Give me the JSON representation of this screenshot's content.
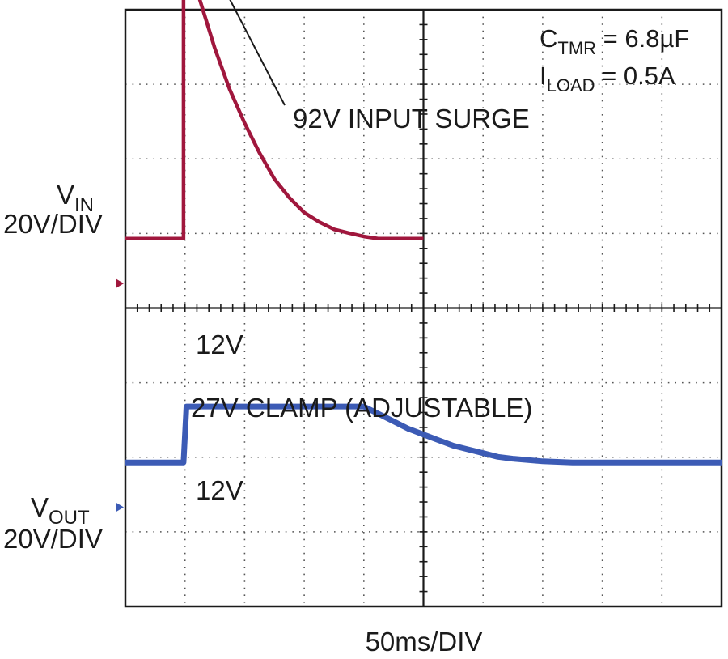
{
  "chart_data": {
    "type": "line",
    "title": "",
    "xlabel": "50ms/DIV",
    "grid": true,
    "divisions": {
      "x": 10,
      "y": 8
    },
    "annotations": {
      "ctmr": {
        "base": "C",
        "sub": "TMR",
        "rest": " = 6.8µF"
      },
      "iload": {
        "base": "I",
        "sub": "LOAD",
        "rest": " = 0.5A"
      },
      "surge": "92V INPUT SURGE",
      "clamp": "27V CLAMP (ADJUSTABLE)",
      "vin_level": "12V",
      "vout_level": "12V"
    },
    "series": [
      {
        "key": "vin",
        "label": {
          "base": "V",
          "sub": "IN",
          "scale": "20V/DIV"
        },
        "color": "#a0173d",
        "offset_div": 4.33,
        "scale_v_per_div": 20,
        "points": [
          [
            0,
            12
          ],
          [
            1.95,
            12
          ],
          [
            1.95,
            92
          ],
          [
            2.5,
            76
          ],
          [
            3,
            63
          ],
          [
            3.5,
            52
          ],
          [
            4,
            43
          ],
          [
            4.5,
            35
          ],
          [
            5,
            28
          ],
          [
            5.5,
            23
          ],
          [
            6,
            19
          ],
          [
            6.5,
            16.5
          ],
          [
            7,
            14.5
          ],
          [
            7.5,
            13.5
          ],
          [
            8,
            12.6
          ],
          [
            8.5,
            12
          ],
          [
            10,
            12
          ]
        ]
      },
      {
        "key": "vout",
        "label": {
          "base": "V",
          "sub": "OUT",
          "scale": "20V/DIV"
        },
        "color": "#3c5bb5",
        "offset_div": 1.33,
        "scale_v_per_div": 20,
        "points": [
          [
            0,
            12
          ],
          [
            1.95,
            12
          ],
          [
            2.05,
            27
          ],
          [
            8,
            27
          ],
          [
            8.5,
            25
          ],
          [
            9,
            23
          ],
          [
            9.5,
            21
          ],
          [
            10,
            19.5
          ],
          [
            10.5,
            18
          ],
          [
            11,
            16.5
          ],
          [
            11.5,
            15.5
          ],
          [
            12,
            14.5
          ],
          [
            12.5,
            13.5
          ],
          [
            13,
            13
          ],
          [
            14,
            12.3
          ],
          [
            15,
            12
          ],
          [
            20,
            12
          ]
        ]
      }
    ]
  }
}
